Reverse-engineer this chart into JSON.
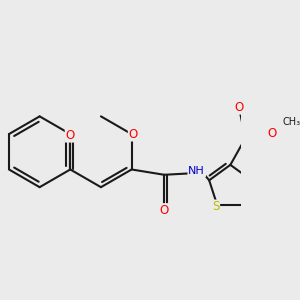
{
  "bg_color": "#ebebeb",
  "bond_color": "#1a1a1a",
  "bond_width": 1.5,
  "atom_colors": {
    "O": "#ff0000",
    "N": "#0000cc",
    "S": "#bbbb00",
    "C": "#1a1a1a"
  },
  "font_size": 8.5,
  "font_size_small": 7.5
}
